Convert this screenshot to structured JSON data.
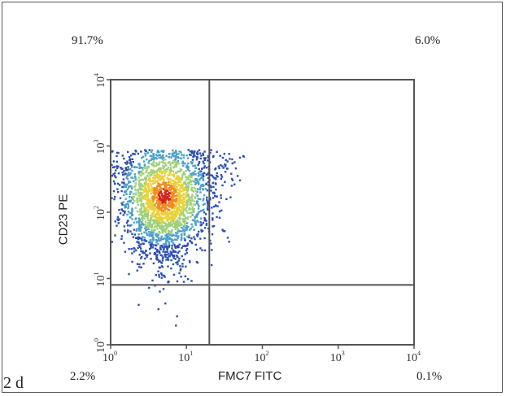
{
  "panel_label": "2 d",
  "chart_data": {
    "type": "scatter",
    "subtype": "flow-cytometry-density-dot-plot",
    "xlabel": "FMC7 FITC",
    "ylabel": "CD23 PE",
    "scale": "log",
    "xlim": [
      1,
      10000
    ],
    "ylim": [
      1,
      10000
    ],
    "x_ticks": [
      {
        "base": "10",
        "exp": "0"
      },
      {
        "base": "10",
        "exp": "1"
      },
      {
        "base": "10",
        "exp": "2"
      },
      {
        "base": "10",
        "exp": "3"
      },
      {
        "base": "10",
        "exp": "4"
      }
    ],
    "y_ticks": [
      {
        "base": "10",
        "exp": "0"
      },
      {
        "base": "10",
        "exp": "1"
      },
      {
        "base": "10",
        "exp": "2"
      },
      {
        "base": "10",
        "exp": "3"
      },
      {
        "base": "10",
        "exp": "4"
      }
    ],
    "quadrant_gate": {
      "x": 20,
      "y": 8
    },
    "quadrant_percentages": {
      "upper_left": "91.7%",
      "upper_right": "6.0%",
      "lower_left": "2.2%",
      "lower_right": "0.1%"
    },
    "population": {
      "center": [
        5,
        180
      ],
      "x_range": [
        1,
        60
      ],
      "y_range": [
        2,
        900
      ],
      "density_colors": [
        "#2b4fb0",
        "#4aa0c8",
        "#9fd07a",
        "#e8d23a",
        "#f08a20",
        "#d8201a"
      ]
    }
  }
}
